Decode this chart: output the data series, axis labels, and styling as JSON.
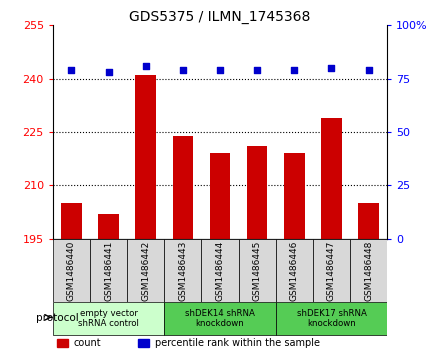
{
  "title": "GDS5375 / ILMN_1745368",
  "samples": [
    "GSM1486440",
    "GSM1486441",
    "GSM1486442",
    "GSM1486443",
    "GSM1486444",
    "GSM1486445",
    "GSM1486446",
    "GSM1486447",
    "GSM1486448"
  ],
  "counts": [
    205,
    202,
    241,
    224,
    219,
    221,
    219,
    229,
    205
  ],
  "percentile_ranks": [
    79,
    78,
    81,
    79,
    79,
    79,
    79,
    80,
    79
  ],
  "ylim_left": [
    195,
    255
  ],
  "ylim_right": [
    0,
    100
  ],
  "yticks_left": [
    195,
    210,
    225,
    240,
    255
  ],
  "yticks_right": [
    0,
    25,
    50,
    75,
    100
  ],
  "bar_color": "#cc0000",
  "dot_color": "#0000cc",
  "baseline": 195,
  "groups": [
    {
      "label": "empty vector\nshRNA control",
      "start": 0,
      "end": 3,
      "color": "#ccffcc"
    },
    {
      "label": "shDEK14 shRNA\nknockdown",
      "start": 3,
      "end": 6,
      "color": "#55cc55"
    },
    {
      "label": "shDEK17 shRNA\nknockdown",
      "start": 6,
      "end": 9,
      "color": "#55cc55"
    }
  ],
  "protocol_label": "protocol",
  "legend_count_label": "count",
  "legend_percentile_label": "percentile rank within the sample",
  "col_bg_color": "#d8d8d8",
  "plot_bg_color": "#ffffff"
}
